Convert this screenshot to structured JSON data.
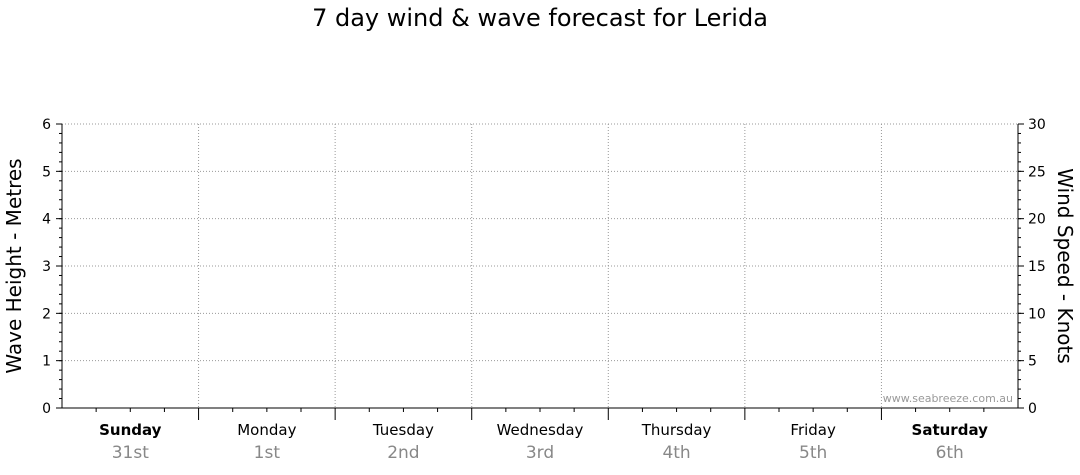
{
  "chart_data": {
    "type": "line",
    "title": "7 day wind & wave forecast for Lerida",
    "y_left": {
      "label": "Wave Height - Metres",
      "range": [
        0,
        6
      ],
      "ticks": [
        "0",
        "1",
        "2",
        "3",
        "4",
        "5",
        "6"
      ]
    },
    "y_right": {
      "label": "Wind Speed - Knots",
      "range": [
        0,
        30
      ],
      "ticks": [
        "0",
        "5",
        "10",
        "15",
        "20",
        "25",
        "30"
      ]
    },
    "days": [
      {
        "name": "Sunday",
        "date": "31st",
        "bold": true
      },
      {
        "name": "Monday",
        "date": "1st",
        "bold": false
      },
      {
        "name": "Tuesday",
        "date": "2nd",
        "bold": false
      },
      {
        "name": "Wednesday",
        "date": "3rd",
        "bold": false
      },
      {
        "name": "Thursday",
        "date": "4th",
        "bold": false
      },
      {
        "name": "Friday",
        "date": "5th",
        "bold": false
      },
      {
        "name": "Saturday",
        "date": "6th",
        "bold": true
      }
    ],
    "series": [],
    "grid": true,
    "watermark": "www.seabreeze.com.au",
    "colors": {
      "grid": "#999999",
      "axis": "#000000",
      "date_text": "#888888"
    }
  }
}
